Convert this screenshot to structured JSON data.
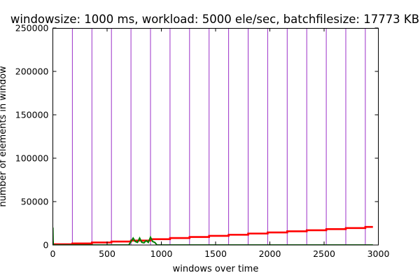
{
  "chart_data": {
    "type": "line",
    "title": "windowsize: 1000 ms, workload: 5000 ele/sec, batchfilesize: 17773 KB",
    "xlabel": "windows over time",
    "ylabel": "number of elements in window",
    "xlim": [
      0,
      3000
    ],
    "ylim": [
      0,
      250000
    ],
    "xticks": [
      0,
      500,
      1000,
      1500,
      2000,
      2500,
      3000
    ],
    "xtick_labels": [
      "0",
      "500",
      "1000",
      "1500",
      "2000",
      "2500",
      "3000"
    ],
    "yticks": [
      0,
      50000,
      100000,
      150000,
      200000,
      250000
    ],
    "ytick_labels": [
      "0",
      "50000",
      "100000",
      "150000",
      "200000",
      "250000"
    ],
    "grid": false,
    "colors": {
      "red_series": "#ff0000",
      "green_series": "#008000",
      "vlines": "#9b30c8"
    },
    "vlines_x": [
      180,
      360,
      540,
      720,
      900,
      1080,
      1260,
      1440,
      1620,
      1800,
      1980,
      2160,
      2340,
      2520,
      2700,
      2880
    ],
    "series": [
      {
        "color": "#ff0000",
        "style": "step",
        "x": [
          0,
          180,
          360,
          540,
          720,
          900,
          1080,
          1260,
          1440,
          1620,
          1800,
          1980,
          2160,
          2340,
          2520,
          2700,
          2880
        ],
        "values": [
          900,
          1800,
          2900,
          4000,
          5100,
          6700,
          8000,
          9200,
          10500,
          11800,
          13200,
          14500,
          15800,
          17000,
          18300,
          19500,
          20800
        ],
        "x_end": 2950
      },
      {
        "color": "#008000",
        "style": "line",
        "x": [
          0,
          2,
          4,
          10,
          40,
          180,
          200,
          360,
          540,
          700,
          720,
          740,
          760,
          780,
          800,
          820,
          840,
          860,
          880,
          900,
          920,
          940,
          960,
          1000,
          1500,
          2000,
          2500,
          2950
        ],
        "values": [
          20000,
          6000,
          0,
          0,
          0,
          0,
          0,
          0,
          0,
          0,
          4000,
          8000,
          4000,
          3000,
          8000,
          3000,
          2500,
          5000,
          3000,
          9000,
          4000,
          3000,
          0,
          0,
          0,
          0,
          0,
          0
        ]
      }
    ]
  }
}
